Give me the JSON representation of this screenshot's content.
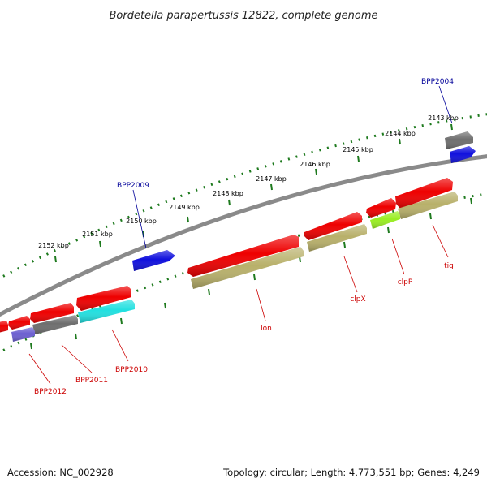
{
  "title": "Bordetella parapertussis 12822, complete genome",
  "footer": {
    "accession": "Accession: NC_002928",
    "summary": "Topology: circular; Length: 4,773,551 bp; Genes: 4,249"
  },
  "colors": {
    "backbone": "#8a8a8a",
    "ruler": "#1e7a1e",
    "cds": "#ee0000",
    "gene": "#b8b06a",
    "hypothetical": "#6e6e6e",
    "blue": "#1010dd",
    "cyan": "#22e0e0",
    "purple": "#6b5fd0",
    "lime": "#99ee22"
  },
  "scale": {
    "unit": "kbp",
    "labels": [
      "2143 kbp",
      "2144 kbp",
      "2145 kbp",
      "2146 kbp",
      "2147 kbp",
      "2148 kbp",
      "2149 kbp",
      "2150 kbp",
      "2151 kbp",
      "2152 kbp"
    ]
  },
  "genes": [
    {
      "name": "BPP2004",
      "color": "blue"
    },
    {
      "name": "BPP2009",
      "color": "blue"
    },
    {
      "name": "tig",
      "color": "red"
    },
    {
      "name": "clpP",
      "color": "red"
    },
    {
      "name": "clpX",
      "color": "red"
    },
    {
      "name": "lon",
      "color": "red"
    },
    {
      "name": "BPP2010",
      "color": "red"
    },
    {
      "name": "BPP2011",
      "color": "red"
    },
    {
      "name": "BPP2012",
      "color": "red"
    }
  ]
}
